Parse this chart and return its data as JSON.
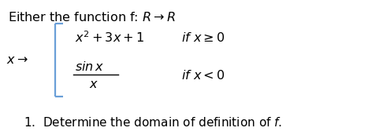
{
  "bg_color": "#ffffff",
  "title_text": "Either the function f: $R \\rightarrow R$",
  "x_arrow": "$x \\rightarrow$",
  "case1_expr": "$x^2 + 3x + 1$",
  "case1_cond": "$if\\ x \\geq 0$",
  "case2_num": "$\\mathit{sin}\\, x$",
  "case2_den": "$x$",
  "case2_cond": "$if\\ x < 0$",
  "question": "1.  Determine the domain of definition of $f$.",
  "title_fontsize": 11.5,
  "body_fontsize": 11.5,
  "question_fontsize": 11.0,
  "bracket_color": "#6a9fd8"
}
